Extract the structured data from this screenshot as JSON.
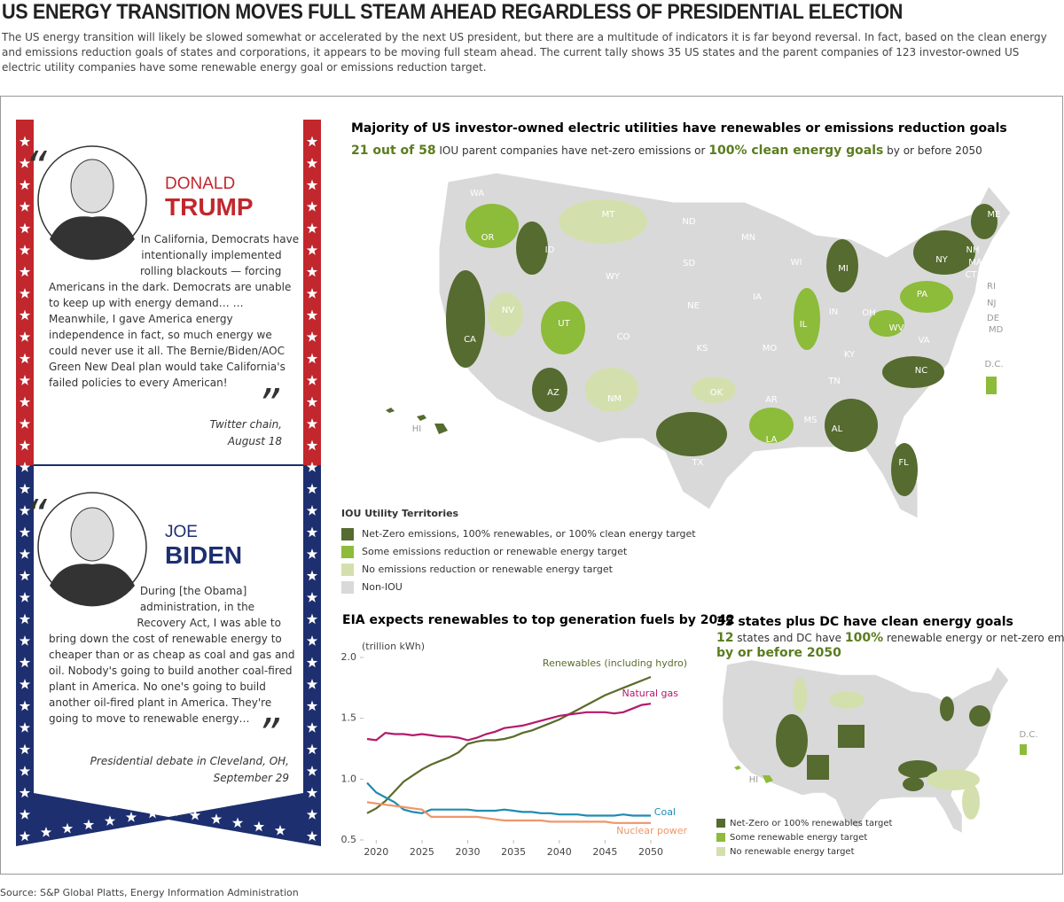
{
  "header": {
    "title": "US ENERGY TRANSITION MOVES FULL STEAM AHEAD REGARDLESS OF PRESIDENTIAL ELECTION",
    "subtitle": "The US energy transition will likely be slowed somewhat or accelerated by the next US president, but there are a multitude of indicators it is far beyond reversal. In fact, based on the clean energy and emissions reduction goals of states and corporations, it appears to be moving full steam ahead. The current tally shows 35 US states and the parent companies of 123 investor-owned US electric utility companies have some renewable energy goal or emissions reduction target."
  },
  "quotes": [
    {
      "first_name": "DONALD",
      "last_name": "TRUMP",
      "text": "In California, Democrats have intentionally implemented rolling blackouts — forcing Americans in the dark. Democrats are unable to keep up with energy demand… …Meanwhile, I gave America energy independence in fact, so much energy we could never use it all. The Bernie/Biden/AOC Green New Deal plan would take California's failed policies to every American!",
      "source": [
        "Twitter chain,",
        "August 18"
      ]
    },
    {
      "first_name": "JOE",
      "last_name": "BIDEN",
      "text": "During [the Obama] administration, in the Recovery Act, I was able to bring down the cost of renewable energy to cheaper than or as cheap as coal and gas and oil. Nobody's going to build another coal-fired plant in America. No one's going to build another oil-fired plant in America. They're going to move to renewable energy…",
      "source": [
        "Presidential debate in Cleveland, OH,",
        "September 29"
      ]
    }
  ],
  "iou_map": {
    "title": "Majority of US investor-owned electric utilities have renewables or emissions reduction goals",
    "subtitle": [
      {
        "text": "21 out of 58",
        "bold": true
      },
      {
        "text": " IOU parent companies have net-zero emissions or ",
        "bold": false
      },
      {
        "text": "100% clean energy goals",
        "bold": true
      },
      {
        "text": " by or before 2050",
        "bold": false
      }
    ],
    "state_labels": [
      "WA",
      "OR",
      "CA",
      "NV",
      "ID",
      "MT",
      "WY",
      "UT",
      "AZ",
      "NM",
      "CO",
      "ND",
      "SD",
      "NE",
      "KS",
      "OK",
      "TX",
      "MN",
      "IA",
      "MO",
      "AR",
      "LA",
      "WI",
      "IL",
      "MI",
      "IN",
      "OH",
      "KY",
      "TN",
      "MS",
      "AL",
      "FL",
      "NC",
      "VA",
      "WV",
      "PA",
      "NY",
      "ME",
      "NH",
      "MA",
      "CT",
      "RI",
      "NJ",
      "DE",
      "MD",
      "D.C.",
      "HI"
    ],
    "legend_title": "IOU Utility Territories",
    "legend": [
      {
        "label": "Net-Zero emissions, 100% renewables, or 100% clean energy target",
        "color": "#556b2f"
      },
      {
        "label": "Some emissions reduction or renewable energy target",
        "color": "#8dbb3a"
      },
      {
        "label": "No emissions reduction or renewable energy target",
        "color": "#d3e0ad"
      },
      {
        "label": "Non-IOU",
        "color": "#d9d9d9"
      }
    ]
  },
  "goals_map": {
    "title": "35 states plus DC have clean energy goals",
    "subtitle": [
      {
        "text": "12",
        "bold": true
      },
      {
        "text": " states and DC have ",
        "bold": false
      },
      {
        "text": "100%",
        "bold": true
      },
      {
        "text": " renewable energy or net-zero emissions goals ",
        "bold": false
      },
      {
        "text": "by or before 2050",
        "bold": true
      }
    ],
    "state_labels": [
      "HI",
      "D.C."
    ],
    "legend": [
      {
        "label": "Net-Zero or 100% renewables target",
        "color": "#556b2f"
      },
      {
        "label": "Some renewable energy target",
        "color": "#8dbb3a"
      },
      {
        "label": "No renewable energy target",
        "color": "#d3e0ad"
      }
    ]
  },
  "chart_data": {
    "type": "line",
    "title": "EIA expects renewables to top generation fuels by 2042",
    "y_label": "(trillion kWh)",
    "x": [
      2019,
      2020,
      2021,
      2022,
      2023,
      2024,
      2025,
      2026,
      2027,
      2028,
      2029,
      2030,
      2031,
      2032,
      2033,
      2034,
      2035,
      2036,
      2037,
      2038,
      2039,
      2040,
      2041,
      2042,
      2043,
      2044,
      2045,
      2046,
      2047,
      2048,
      2049,
      2050
    ],
    "xlim": [
      2019,
      2050
    ],
    "xticks": [
      2020,
      2025,
      2030,
      2035,
      2040,
      2045,
      2050
    ],
    "ylim": [
      0.5,
      2.0
    ],
    "yticks": [
      0.5,
      {
        "value": 1,
        "label": "1.0"
      },
      1.5,
      {
        "value": 2,
        "label": "2.0"
      }
    ],
    "grid": false,
    "series": [
      {
        "name": "Renewables (including hydro)",
        "color": "#5a6b2a",
        "values": [
          0.72,
          0.76,
          0.82,
          0.9,
          0.98,
          1.03,
          1.08,
          1.12,
          1.15,
          1.18,
          1.22,
          1.29,
          1.31,
          1.32,
          1.32,
          1.33,
          1.35,
          1.38,
          1.4,
          1.43,
          1.46,
          1.49,
          1.53,
          1.57,
          1.61,
          1.65,
          1.69,
          1.72,
          1.75,
          1.78,
          1.81,
          1.84
        ]
      },
      {
        "name": "Natural gas",
        "color": "#b5186b",
        "values": [
          1.33,
          1.32,
          1.38,
          1.37,
          1.37,
          1.36,
          1.37,
          1.36,
          1.35,
          1.35,
          1.34,
          1.32,
          1.34,
          1.37,
          1.39,
          1.42,
          1.43,
          1.44,
          1.46,
          1.48,
          1.5,
          1.52,
          1.53,
          1.54,
          1.55,
          1.55,
          1.55,
          1.54,
          1.55,
          1.58,
          1.61,
          1.62
        ]
      },
      {
        "name": "Coal",
        "color": "#1f8bb0",
        "values": [
          0.97,
          0.89,
          0.85,
          0.81,
          0.75,
          0.73,
          0.72,
          0.75,
          0.75,
          0.75,
          0.75,
          0.75,
          0.74,
          0.74,
          0.74,
          0.75,
          0.74,
          0.73,
          0.73,
          0.72,
          0.72,
          0.71,
          0.71,
          0.71,
          0.7,
          0.7,
          0.7,
          0.7,
          0.71,
          0.7,
          0.7,
          0.7
        ]
      },
      {
        "name": "Nuclear power",
        "color": "#f0956a",
        "values": [
          0.81,
          0.8,
          0.79,
          0.78,
          0.77,
          0.76,
          0.75,
          0.69,
          0.69,
          0.69,
          0.69,
          0.69,
          0.69,
          0.68,
          0.67,
          0.66,
          0.66,
          0.66,
          0.66,
          0.66,
          0.65,
          0.65,
          0.65,
          0.65,
          0.65,
          0.65,
          0.65,
          0.64,
          0.64,
          0.64,
          0.64,
          0.64
        ]
      }
    ]
  },
  "source": "Source: S&P Global Platts, Energy Information Administration"
}
